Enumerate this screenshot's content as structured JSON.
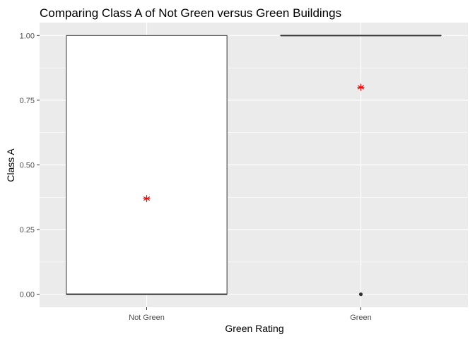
{
  "chart_data": {
    "type": "boxplot",
    "title": "Comparing Class A of Not Green versus Green Buildings",
    "xlabel": "Green Rating",
    "ylabel": "Class A",
    "categories": [
      "Not Green",
      "Green"
    ],
    "ylim": [
      -0.05,
      1.05
    ],
    "yticks": [
      0.0,
      0.25,
      0.5,
      0.75,
      1.0
    ],
    "ytick_labels": [
      "0.00",
      "0.25",
      "0.50",
      "0.75",
      "1.00"
    ],
    "boxes": [
      {
        "category": "Not Green",
        "lower_whisker": 0,
        "q1": 0,
        "median": 0,
        "q3": 1,
        "upper_whisker": 1,
        "mean": 0.37,
        "outliers": []
      },
      {
        "category": "Green",
        "lower_whisker": 1,
        "q1": 1,
        "median": 1,
        "q3": 1,
        "upper_whisker": 1,
        "mean": 0.8,
        "outliers": [
          0
        ]
      }
    ],
    "grid": true,
    "colors": {
      "panel": "#ebebeb",
      "grid_major": "#ffffff",
      "box_fill": "#ffffff",
      "box_line": "#333333",
      "mean_marker": "#ff0000",
      "outlier": "#333333"
    },
    "mean_marker_shape": "asterisk"
  }
}
